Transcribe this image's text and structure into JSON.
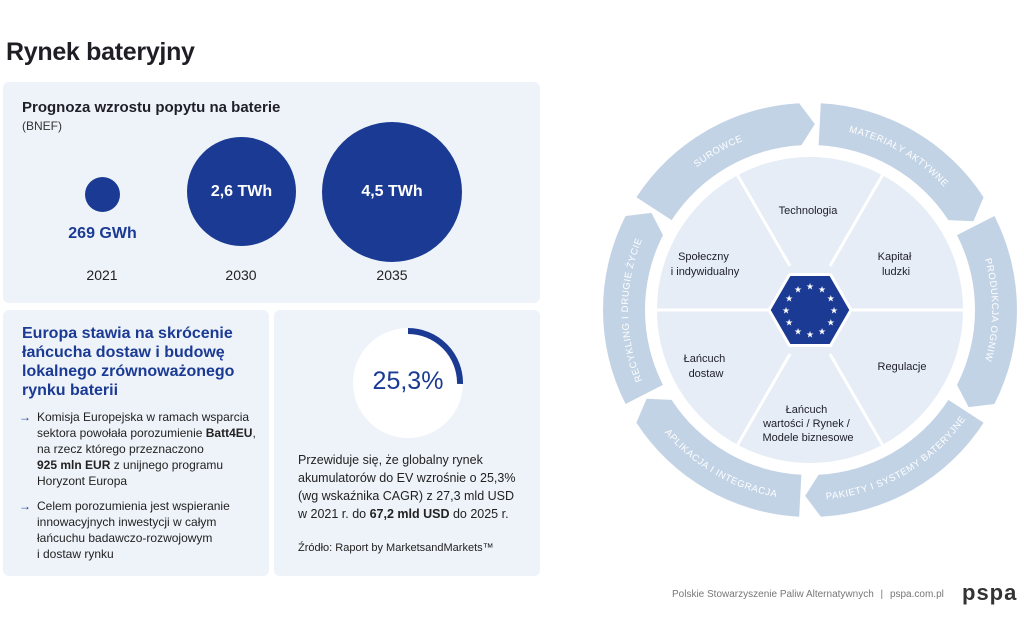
{
  "page_title": "Rynek bateryjny",
  "forecast": {
    "title": "Prognoza wzrostu popytu na baterie",
    "source": "(BNEF)",
    "bubbles": [
      {
        "value": "269 GWh",
        "year": "2021"
      },
      {
        "value": "2,6 TWh",
        "year": "2030"
      },
      {
        "value": "4,5 TWh",
        "year": "2035"
      }
    ]
  },
  "europe": {
    "heading_lines": [
      "Europa stawia na skrócenie",
      "łańcucha dostaw i budowę",
      "lokalnego zrównoważonego",
      "rynku baterii"
    ],
    "bullet1": {
      "line1": "Komisja Europejska w ramach wsparcia",
      "line2_pre": "sektora powołała porozumienie ",
      "line2_bold": "Batt4EU",
      "line2_post": ",",
      "line3": "na rzecz którego przeznaczono",
      "line4_bold": "925 mln EUR",
      "line4_post": " z unijnego programu",
      "line5": "Horyzont Europa"
    },
    "bullet2_lines": [
      "Celem porozumienia jest wspieranie",
      "innowacyjnych inwestycji w całym",
      "łańcuchu badawczo-rozwojowym",
      "i dostaw rynku"
    ],
    "arrow": "→"
  },
  "stat": {
    "value": "25,3%",
    "line1": "Przewiduje się, że globalny rynek",
    "line2": "akumulatorów do EV wzrośnie o 25,3%",
    "line3": "(wg wskaźnika CAGR) z 27,3 mld USD",
    "line4_pre": "w 2021 r. do ",
    "line4_bold": "67,2 mld USD",
    "line4_post": " do 2025 r.",
    "source": "Źródło: Raport by MarketsandMarkets™",
    "fraction": 0.253
  },
  "wheel": {
    "outer": [
      "SUROWCE",
      "MATERIAŁY AKTYWNE",
      "PRODUKCJA OGNIW",
      "PAKIETY I SYSTEMY BATERYJNE",
      "APLIKACJA I INTEGRACJA",
      "RECYKLING I DRUGIE ŻYCIE"
    ],
    "inner": {
      "technologia": "Technologia",
      "kapital": [
        "Kapitał",
        "ludzki"
      ],
      "regulacje": "Regulacje",
      "lancuch_wart": [
        "Łańcuch",
        "wartości / Rynek /",
        "Modele biznesowe"
      ],
      "lancuch_dost": [
        "Łańcuch",
        "dostaw"
      ],
      "spoleczny": [
        "Społeczny",
        "i indywidualny"
      ]
    }
  },
  "footer": {
    "org": "Polskie Stowarzyszenie Paliw Alternatywnych",
    "sep": "|",
    "url": "pspa.com.pl",
    "logo": "pspa"
  },
  "colors": {
    "navy": "#1b3a93",
    "panel": "#eef3f9",
    "ring": "#c3d3e6",
    "inner": "#e6edf6"
  }
}
